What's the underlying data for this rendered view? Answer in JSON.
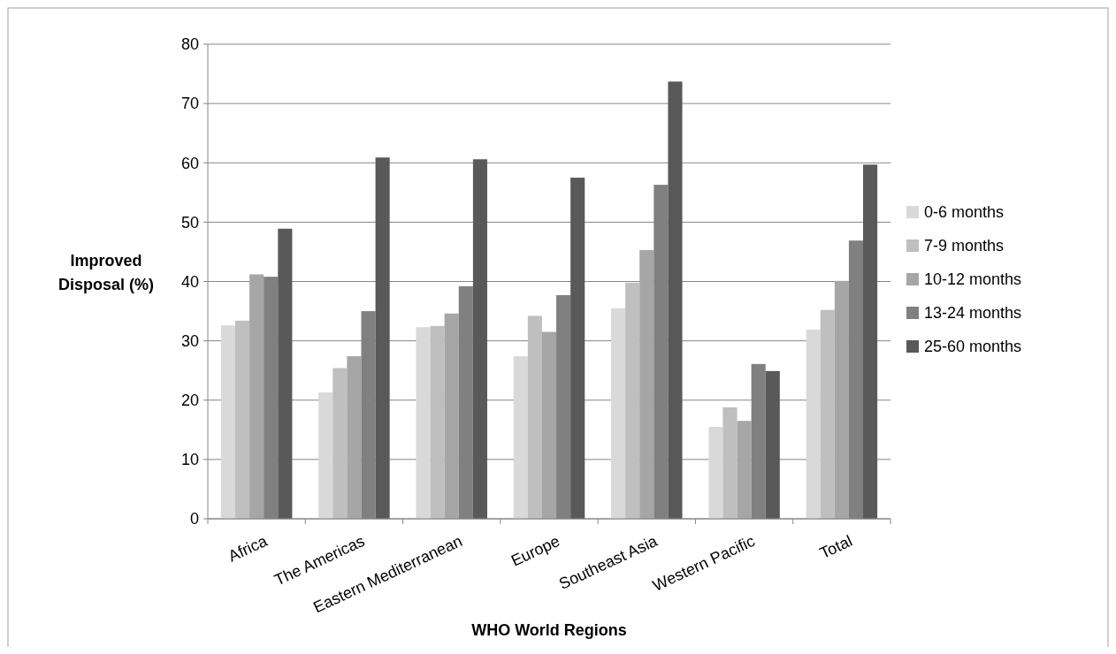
{
  "chart_data": {
    "type": "bar",
    "xlabel": "WHO World Regions",
    "ylabel": "Improved Disposal (%)",
    "categories": [
      "Africa",
      "The Americas",
      "Eastern Mediterranean",
      "Europe",
      "Southeast Asia",
      "Western Pacific",
      "Total"
    ],
    "series": [
      {
        "name": "0-6 months",
        "color": "#d9d9d9",
        "values": [
          32.6,
          21.3,
          32.3,
          27.4,
          35.5,
          15.5,
          31.9
        ]
      },
      {
        "name": "7-9 months",
        "color": "#bfbfbf",
        "values": [
          33.4,
          25.4,
          32.5,
          34.2,
          39.8,
          18.8,
          35.2
        ]
      },
      {
        "name": "10-12 months",
        "color": "#a6a6a6",
        "values": [
          41.2,
          27.4,
          34.6,
          31.5,
          45.3,
          16.5,
          40.1
        ]
      },
      {
        "name": "13-24 months",
        "color": "#808080",
        "values": [
          40.8,
          35.0,
          39.2,
          37.7,
          56.3,
          26.1,
          46.9
        ]
      },
      {
        "name": "25-60 months",
        "color": "#595959",
        "values": [
          48.9,
          60.9,
          60.6,
          57.5,
          73.7,
          24.9,
          59.7
        ]
      }
    ],
    "ylim": [
      0,
      80
    ],
    "yticks": [
      0,
      10,
      20,
      30,
      40,
      50,
      60,
      70,
      80
    ],
    "grid": "y",
    "legend": "right"
  }
}
